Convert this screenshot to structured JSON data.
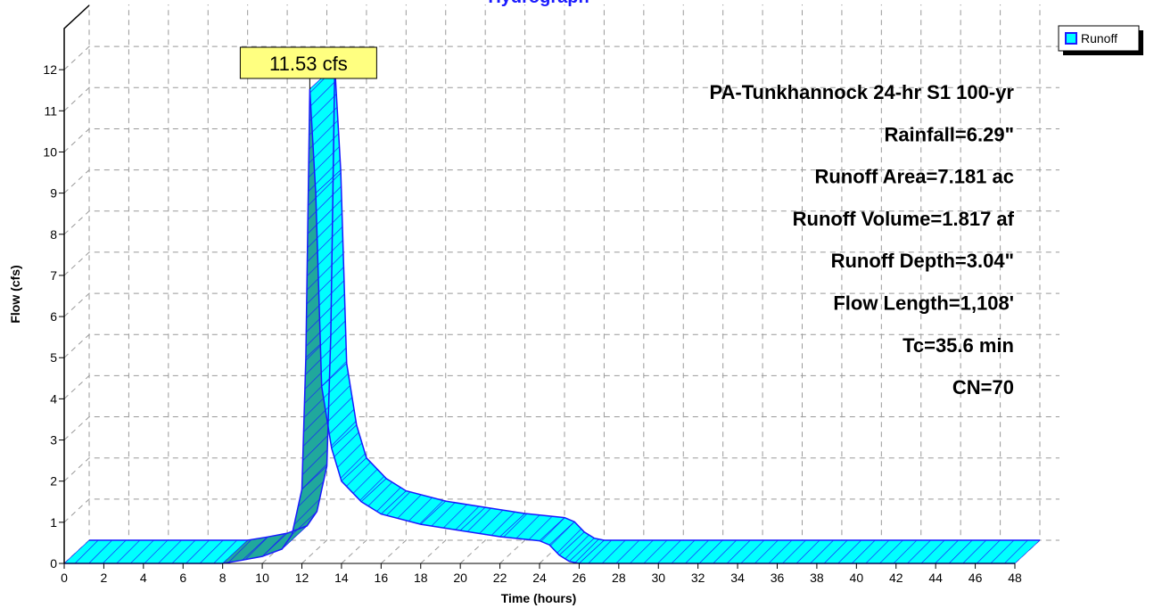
{
  "chart_data": {
    "type": "area3d",
    "title": "Hydrograph",
    "xlabel": "Time (hours)",
    "ylabel": "Flow (cfs)",
    "x": [
      0,
      8,
      9,
      10,
      11,
      11.5,
      12,
      12.2,
      12.4,
      12.7,
      13,
      13.5,
      14,
      15,
      16,
      18,
      20,
      22,
      24,
      24.5,
      25,
      25.5,
      26,
      48
    ],
    "series": [
      {
        "name": "Runoff",
        "color": "#00ffff",
        "values": [
          0,
          0,
          0.08,
          0.17,
          0.35,
          0.7,
          1.8,
          5,
          11.53,
          9,
          4.3,
          2.8,
          2.0,
          1.5,
          1.2,
          0.95,
          0.8,
          0.65,
          0.55,
          0.45,
          0.2,
          0.05,
          0,
          0
        ]
      }
    ],
    "peak_label": "11.53 cfs",
    "annotations": [
      "PA-Tunkhannock 24-hr S1 100-yr",
      "Rainfall=6.29\"",
      "Runoff Area=7.181 ac",
      "Runoff Volume=1.817 af",
      "Runoff Depth=3.04\"",
      "Flow Length=1,108'",
      "Tc=35.6 min",
      "CN=70"
    ],
    "xlim": [
      0,
      48
    ],
    "xticks": [
      0,
      2,
      4,
      6,
      8,
      10,
      12,
      14,
      16,
      18,
      20,
      22,
      24,
      26,
      28,
      30,
      32,
      34,
      36,
      38,
      40,
      42,
      44,
      46,
      48
    ],
    "ylim": [
      0,
      13
    ],
    "yticks": [
      0,
      1,
      2,
      3,
      4,
      5,
      6,
      7,
      8,
      9,
      10,
      11,
      12
    ],
    "grid": true,
    "legend": "top-right"
  }
}
